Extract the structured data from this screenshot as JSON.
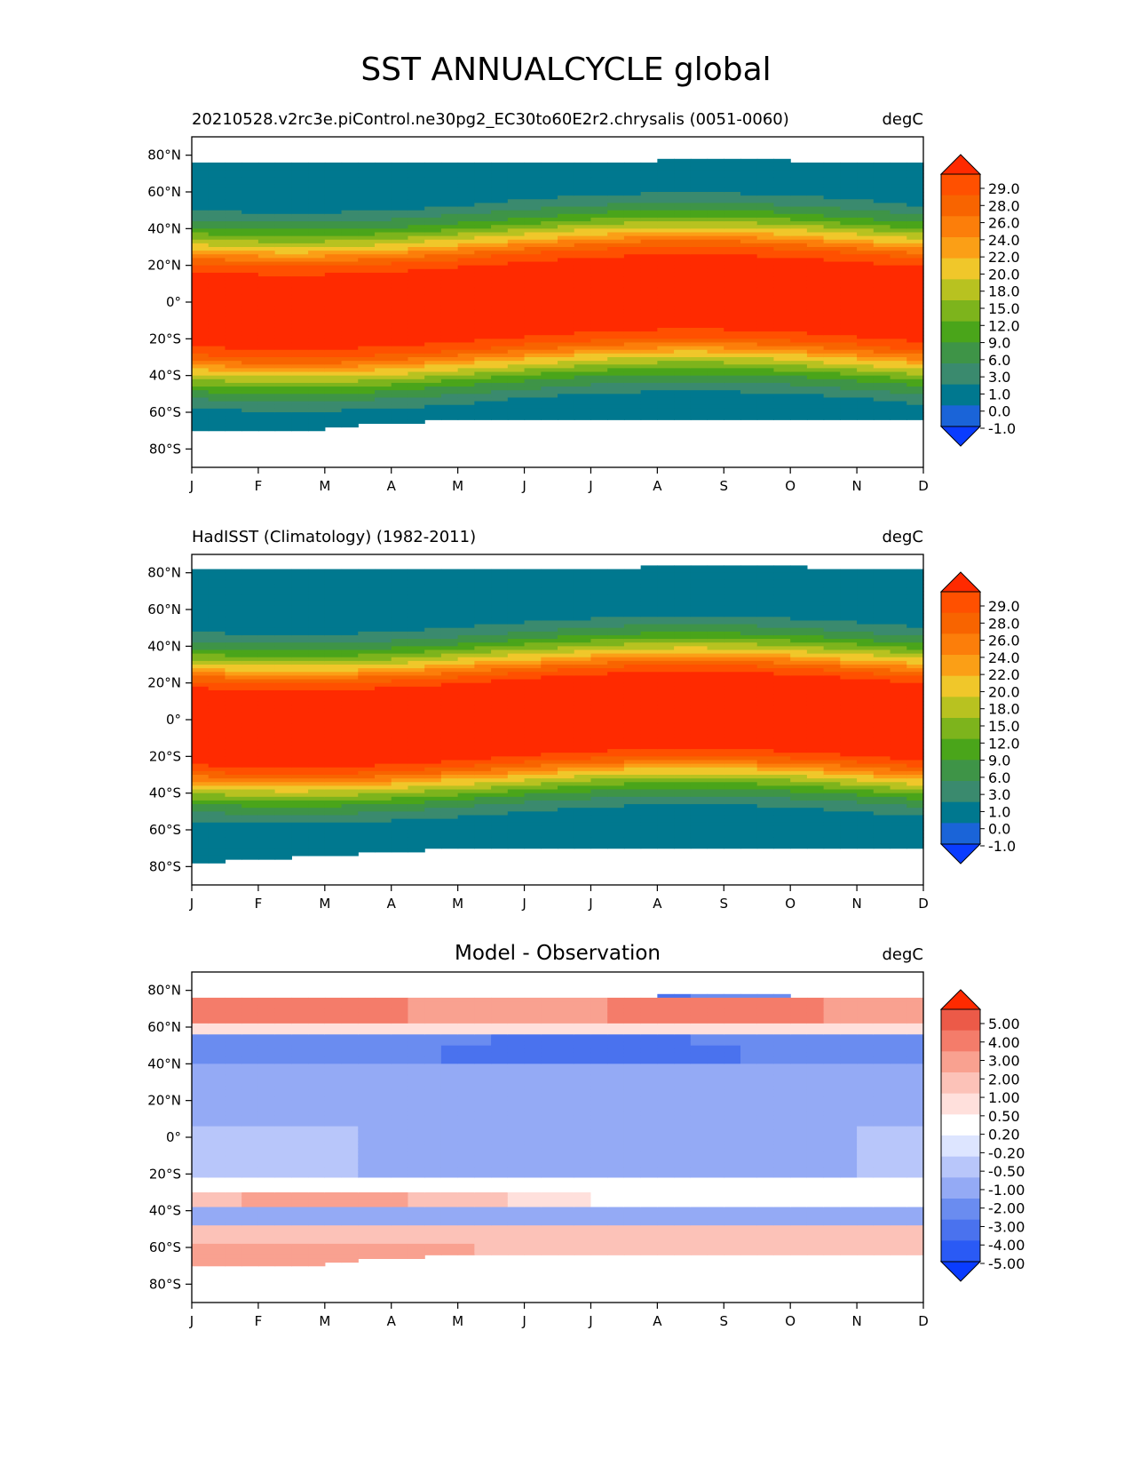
{
  "figure": {
    "suptitle": "SST ANNUALCYCLE global"
  },
  "colors": {
    "absolute_scale": [
      "#0a3cff",
      "#1a64d8",
      "#00788f",
      "#3a8a6e",
      "#3e9447",
      "#4aa51a",
      "#7db41c",
      "#b8c220",
      "#f0c72a",
      "#fb9f16",
      "#fc7e0a",
      "#f86400",
      "#ff5000",
      "#ff2a00"
    ],
    "difference_scale": [
      "#0a3cff",
      "#2a5af5",
      "#4a72ee",
      "#6a8cf0",
      "#94aaf5",
      "#b8c6fa",
      "#dde5ff",
      "#ffffff",
      "#ffe0dc",
      "#fcc2b8",
      "#f9a190",
      "#f47c6a",
      "#ec5a48",
      "#ff2a00"
    ]
  },
  "chart_data": [
    {
      "type": "heatmap",
      "title_left": "20210528.v2rc3e.piControl.ne30pg2_EC30to60E2r2.chrysalis (0051-0060)",
      "title_center": "",
      "title_right": "degC",
      "x_ticks": [
        "J",
        "F",
        "M",
        "A",
        "M",
        "J",
        "J",
        "A",
        "S",
        "O",
        "N",
        "D"
      ],
      "y_ticks": [
        "80°N",
        "60°N",
        "40°N",
        "20°N",
        "0°",
        "20°S",
        "40°S",
        "60°S",
        "80°S"
      ],
      "y_values": [
        80,
        60,
        40,
        20,
        0,
        -20,
        -40,
        -60,
        -80
      ],
      "ylim": [
        -90,
        90
      ],
      "colorbar": {
        "ticks": [
          "29.0",
          "28.0",
          "26.0",
          "24.0",
          "22.0",
          "20.0",
          "18.0",
          "15.0",
          "12.0",
          "9.0",
          "6.0",
          "3.0",
          "1.0",
          "0.0",
          "-1.0"
        ],
        "extend": "both"
      },
      "approx_field": {
        "description_lat": [
          75,
          65,
          55,
          45,
          35,
          25,
          15,
          5,
          -5,
          -15,
          -25,
          -35,
          -45,
          -55,
          -65
        ],
        "annual_mean_degC": [
          1.0,
          3.0,
          6.0,
          12.0,
          18.0,
          22.0,
          26.0,
          28.0,
          28.0,
          26.0,
          22.0,
          15.0,
          9.0,
          3.0,
          0.0
        ]
      }
    },
    {
      "type": "heatmap",
      "title_left": "HadISST (Climatology) (1982-2011)",
      "title_center": "",
      "title_right": "degC",
      "x_ticks": [
        "J",
        "F",
        "M",
        "A",
        "M",
        "J",
        "J",
        "A",
        "S",
        "O",
        "N",
        "D"
      ],
      "y_ticks": [
        "80°N",
        "60°N",
        "40°N",
        "20°N",
        "0°",
        "20°S",
        "40°S",
        "60°S",
        "80°S"
      ],
      "y_values": [
        80,
        60,
        40,
        20,
        0,
        -20,
        -40,
        -60,
        -80
      ],
      "ylim": [
        -90,
        90
      ],
      "colorbar": {
        "ticks": [
          "29.0",
          "28.0",
          "26.0",
          "24.0",
          "22.0",
          "20.0",
          "18.0",
          "15.0",
          "12.0",
          "9.0",
          "6.0",
          "3.0",
          "1.0",
          "0.0",
          "-1.0"
        ],
        "extend": "both"
      }
    },
    {
      "type": "heatmap",
      "title_left": "",
      "title_center": "Model - Observation",
      "title_right": "degC",
      "x_ticks": [
        "J",
        "F",
        "M",
        "A",
        "M",
        "J",
        "J",
        "A",
        "S",
        "O",
        "N",
        "D"
      ],
      "y_ticks": [
        "80°N",
        "60°N",
        "40°N",
        "20°N",
        "0°",
        "20°S",
        "40°S",
        "60°S",
        "80°S"
      ],
      "y_values": [
        80,
        60,
        40,
        20,
        0,
        -20,
        -40,
        -60,
        -80
      ],
      "ylim": [
        -90,
        90
      ],
      "colorbar": {
        "ticks": [
          "5.00",
          "4.00",
          "3.00",
          "2.00",
          "1.00",
          "0.50",
          "0.20",
          "-0.20",
          "-0.50",
          "-1.00",
          "-2.00",
          "-3.00",
          "-4.00",
          "-5.00"
        ],
        "extend": "both"
      }
    }
  ]
}
